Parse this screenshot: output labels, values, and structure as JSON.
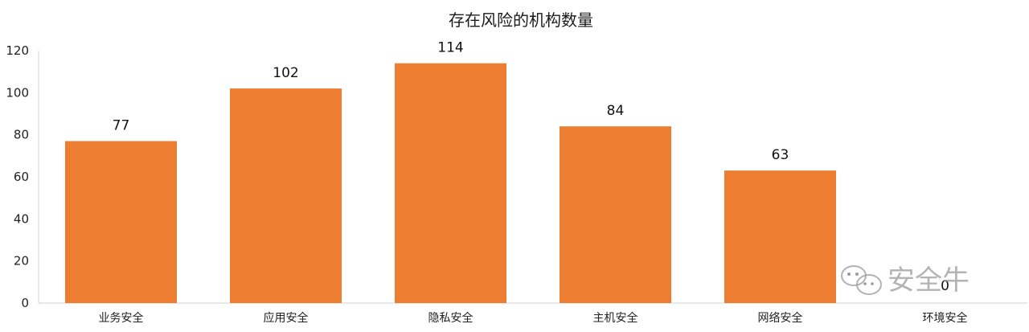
{
  "chart_data": {
    "type": "bar",
    "title": "存在风险的机构数量",
    "categories": [
      "业务安全",
      "应用安全",
      "隐私安全",
      "主机安全",
      "网络安全",
      "环境安全"
    ],
    "values": [
      77,
      102,
      114,
      84,
      63,
      0
    ],
    "data_labels": [
      "77",
      "102",
      "114",
      "84",
      "63",
      "0"
    ],
    "y_ticks": [
      "0",
      "20",
      "40",
      "60",
      "80",
      "100",
      "120"
    ],
    "xlabel": "",
    "ylabel": "",
    "ylim": [
      0,
      120
    ],
    "grid": false,
    "legend": "none",
    "bar_color": "#ED7D31"
  },
  "watermark": {
    "text": "安全牛"
  }
}
